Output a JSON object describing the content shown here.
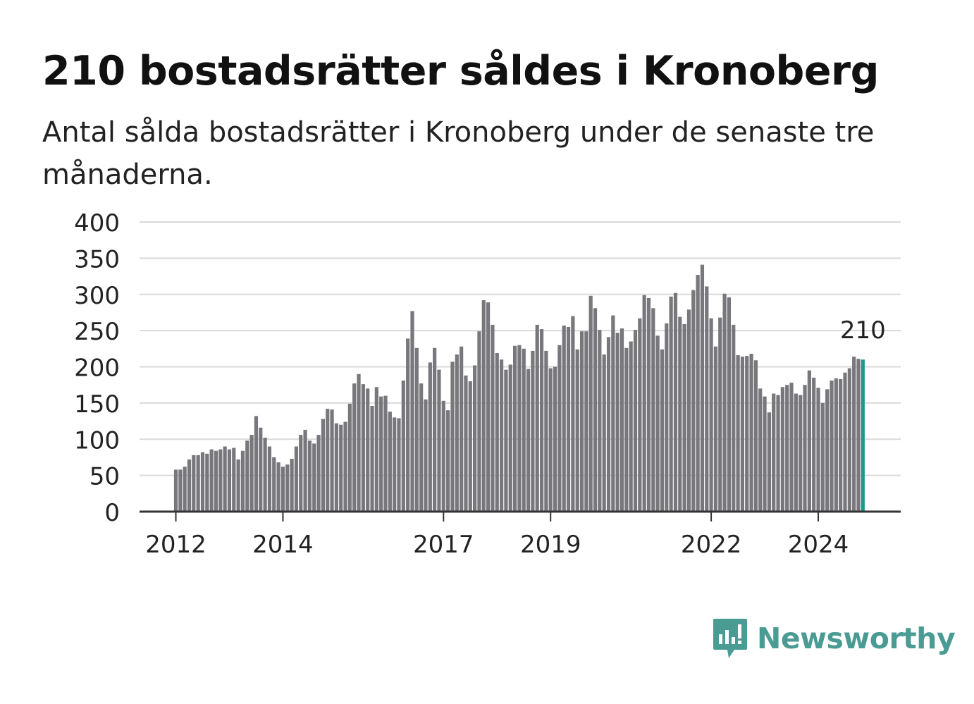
{
  "header": {
    "title": "210 bostadsrätter såldes i Kronoberg",
    "subtitle": "Antal sålda bostadsrätter i Kronoberg under de senaste tre månaderna."
  },
  "brand": {
    "name": "Newsworthy",
    "icon": "newsworthy-logo-icon",
    "color": "#4a9b94"
  },
  "colors": {
    "bar": "#77777c",
    "highlight": "#1b9a8c",
    "grid": "#d9d9d9",
    "axis": "#333333"
  },
  "chart_data": {
    "type": "bar",
    "title": "210 bostadsrätter såldes i Kronoberg",
    "subtitle": "Antal sålda bostadsrätter i Kronoberg under de senaste tre månaderna.",
    "xlabel": "",
    "ylabel": "",
    "ylim": [
      0,
      400
    ],
    "yticks": [
      0,
      50,
      100,
      150,
      200,
      250,
      300,
      350,
      400
    ],
    "grid": true,
    "legend": "none",
    "x_start": "2012-01",
    "x_tick_labels": [
      "2012",
      "2014",
      "2017",
      "2019",
      "2022",
      "2024"
    ],
    "x_tick_index": [
      0,
      24,
      60,
      84,
      120,
      144
    ],
    "highlight_label": "210",
    "highlight_index": 154,
    "values": [
      58,
      58,
      62,
      72,
      78,
      78,
      82,
      80,
      86,
      84,
      86,
      90,
      86,
      88,
      72,
      84,
      98,
      106,
      132,
      116,
      102,
      90,
      75,
      68,
      62,
      65,
      73,
      90,
      106,
      113,
      98,
      94,
      106,
      128,
      142,
      141,
      122,
      120,
      124,
      149,
      177,
      190,
      176,
      170,
      146,
      172,
      159,
      160,
      138,
      130,
      129,
      181,
      239,
      277,
      226,
      177,
      155,
      206,
      226,
      196,
      153,
      140,
      207,
      217,
      228,
      188,
      180,
      202,
      249,
      292,
      289,
      258,
      219,
      210,
      196,
      203,
      229,
      230,
      225,
      197,
      222,
      258,
      252,
      222,
      198,
      200,
      230,
      257,
      255,
      270,
      224,
      249,
      249,
      298,
      281,
      251,
      217,
      241,
      271,
      247,
      253,
      226,
      235,
      251,
      267,
      299,
      295,
      281,
      243,
      224,
      260,
      297,
      302,
      269,
      259,
      279,
      306,
      327,
      341,
      311,
      267,
      228,
      268,
      301,
      296,
      258,
      216,
      214,
      215,
      218,
      209,
      170,
      159,
      137,
      163,
      161,
      172,
      175,
      178,
      163,
      161,
      175,
      195,
      185,
      171,
      150,
      169,
      181,
      184,
      183,
      192,
      198,
      214,
      211,
      210
    ]
  }
}
